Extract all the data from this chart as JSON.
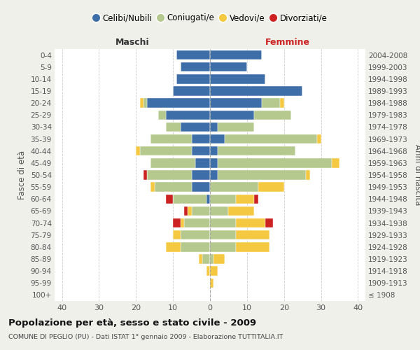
{
  "age_groups": [
    "100+",
    "95-99",
    "90-94",
    "85-89",
    "80-84",
    "75-79",
    "70-74",
    "65-69",
    "60-64",
    "55-59",
    "50-54",
    "45-49",
    "40-44",
    "35-39",
    "30-34",
    "25-29",
    "20-24",
    "15-19",
    "10-14",
    "5-9",
    "0-4"
  ],
  "birth_years": [
    "≤ 1908",
    "1909-1913",
    "1914-1918",
    "1919-1923",
    "1924-1928",
    "1929-1933",
    "1934-1938",
    "1939-1943",
    "1944-1948",
    "1949-1953",
    "1954-1958",
    "1959-1963",
    "1964-1968",
    "1969-1973",
    "1974-1978",
    "1979-1983",
    "1984-1988",
    "1989-1993",
    "1994-1998",
    "1999-2003",
    "2004-2008"
  ],
  "males_celibi": [
    0,
    0,
    0,
    0,
    0,
    0,
    0,
    0,
    1,
    5,
    5,
    4,
    5,
    5,
    8,
    12,
    17,
    10,
    9,
    8,
    9
  ],
  "males_coniugati": [
    0,
    0,
    0,
    2,
    8,
    8,
    7,
    5,
    9,
    10,
    12,
    12,
    14,
    11,
    4,
    2,
    1,
    0,
    0,
    0,
    0
  ],
  "males_vedovi": [
    0,
    0,
    1,
    1,
    4,
    2,
    1,
    1,
    0,
    1,
    0,
    0,
    1,
    0,
    0,
    0,
    1,
    0,
    0,
    0,
    0
  ],
  "males_divorziati": [
    0,
    0,
    0,
    0,
    0,
    0,
    2,
    1,
    2,
    0,
    1,
    0,
    0,
    0,
    0,
    0,
    0,
    0,
    0,
    0,
    0
  ],
  "fem_nubili": [
    0,
    0,
    0,
    0,
    0,
    0,
    0,
    0,
    0,
    0,
    2,
    2,
    2,
    4,
    2,
    12,
    14,
    25,
    15,
    10,
    14
  ],
  "fem_coniugate": [
    0,
    0,
    0,
    1,
    7,
    7,
    7,
    5,
    7,
    13,
    24,
    31,
    21,
    25,
    10,
    10,
    5,
    0,
    0,
    0,
    0
  ],
  "fem_vedove": [
    0,
    1,
    2,
    3,
    9,
    9,
    8,
    7,
    5,
    7,
    1,
    2,
    0,
    1,
    0,
    0,
    1,
    0,
    0,
    0,
    0
  ],
  "fem_divorziate": [
    0,
    0,
    0,
    0,
    0,
    0,
    2,
    0,
    1,
    0,
    0,
    0,
    0,
    0,
    0,
    0,
    0,
    0,
    0,
    0,
    0
  ],
  "color_celibi": "#3d6ea8",
  "color_coniugati": "#b5c98e",
  "color_vedovi": "#f5c842",
  "color_divorziati": "#cc2222",
  "xlim": 42,
  "title": "Popolazione per età, sesso e stato civile - 2009",
  "subtitle": "COMUNE DI PEGLIO (PU) - Dati ISTAT 1° gennaio 2009 - Elaborazione TUTTITALIA.IT",
  "ylabel_left": "Fasce di età",
  "ylabel_right": "Anni di nascita",
  "label_males": "Maschi",
  "label_females": "Femmine",
  "legend_labels": [
    "Celibi/Nubili",
    "Coniugati/e",
    "Vedovi/e",
    "Divorziati/e"
  ],
  "bg_color": "#f0f0eb",
  "plot_bg_color": "#ffffff"
}
